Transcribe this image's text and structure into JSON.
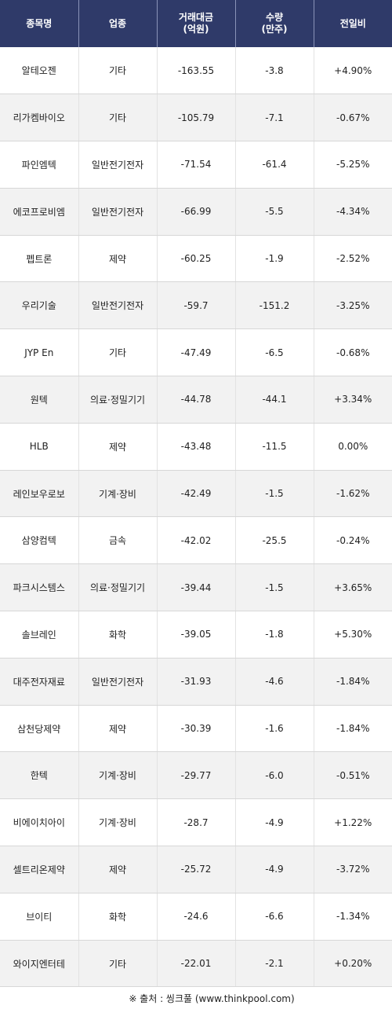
{
  "header": {
    "name": "종목명",
    "sector": "업종",
    "amount_line1": "거래대금",
    "amount_line2": "(억원)",
    "volume_line1": "수량",
    "volume_line2": "(만주)",
    "change": "전일비"
  },
  "rows": [
    {
      "name": "알테오젠",
      "sector": "기타",
      "amount": "-163.55",
      "volume": "-3.8",
      "change": "+4.90%",
      "dir": "up"
    },
    {
      "name": "리가켐바이오",
      "sector": "기타",
      "amount": "-105.79",
      "volume": "-7.1",
      "change": "-0.67%",
      "dir": "down"
    },
    {
      "name": "파인엠텍",
      "sector": "일반전기전자",
      "amount": "-71.54",
      "volume": "-61.4",
      "change": "-5.25%",
      "dir": "down"
    },
    {
      "name": "에코프로비엠",
      "sector": "일반전기전자",
      "amount": "-66.99",
      "volume": "-5.5",
      "change": "-4.34%",
      "dir": "down"
    },
    {
      "name": "펩트론",
      "sector": "제약",
      "amount": "-60.25",
      "volume": "-1.9",
      "change": "-2.52%",
      "dir": "down"
    },
    {
      "name": "우리기술",
      "sector": "일반전기전자",
      "amount": "-59.7",
      "volume": "-151.2",
      "change": "-3.25%",
      "dir": "down"
    },
    {
      "name": "JYP En",
      "sector": "기타",
      "amount": "-47.49",
      "volume": "-6.5",
      "change": "-0.68%",
      "dir": "down"
    },
    {
      "name": "원텍",
      "sector": "의료·정밀기기",
      "amount": "-44.78",
      "volume": "-44.1",
      "change": "+3.34%",
      "dir": "up"
    },
    {
      "name": "HLB",
      "sector": "제약",
      "amount": "-43.48",
      "volume": "-11.5",
      "change": "0.00%",
      "dir": "flat"
    },
    {
      "name": "레인보우로보",
      "sector": "기계·장비",
      "amount": "-42.49",
      "volume": "-1.5",
      "change": "-1.62%",
      "dir": "down"
    },
    {
      "name": "삼양컴텍",
      "sector": "금속",
      "amount": "-42.02",
      "volume": "-25.5",
      "change": "-0.24%",
      "dir": "down"
    },
    {
      "name": "파크시스템스",
      "sector": "의료·정밀기기",
      "amount": "-39.44",
      "volume": "-1.5",
      "change": "+3.65%",
      "dir": "up"
    },
    {
      "name": "솔브레인",
      "sector": "화학",
      "amount": "-39.05",
      "volume": "-1.8",
      "change": "+5.30%",
      "dir": "up"
    },
    {
      "name": "대주전자재료",
      "sector": "일반전기전자",
      "amount": "-31.93",
      "volume": "-4.6",
      "change": "-1.84%",
      "dir": "down"
    },
    {
      "name": "삼천당제약",
      "sector": "제약",
      "amount": "-30.39",
      "volume": "-1.6",
      "change": "-1.84%",
      "dir": "down"
    },
    {
      "name": "한텍",
      "sector": "기계·장비",
      "amount": "-29.77",
      "volume": "-6.0",
      "change": "-0.51%",
      "dir": "down"
    },
    {
      "name": "비에이치아이",
      "sector": "기계·장비",
      "amount": "-28.7",
      "volume": "-4.9",
      "change": "+1.22%",
      "dir": "up"
    },
    {
      "name": "셀트리온제약",
      "sector": "제약",
      "amount": "-25.72",
      "volume": "-4.9",
      "change": "-3.72%",
      "dir": "down"
    },
    {
      "name": "브이티",
      "sector": "화학",
      "amount": "-24.6",
      "volume": "-6.6",
      "change": "-1.34%",
      "dir": "down"
    },
    {
      "name": "와이지엔터테",
      "sector": "기타",
      "amount": "-22.01",
      "volume": "-2.1",
      "change": "+0.20%",
      "dir": "up"
    }
  ],
  "colors": {
    "header_bg": "#2f3a69",
    "up": "#d4141b",
    "down": "#2232a8",
    "stripe": "#f2f2f2"
  },
  "footer": {
    "source": "※ 출처 : 씽크풀 (www.thinkpool.com)"
  }
}
